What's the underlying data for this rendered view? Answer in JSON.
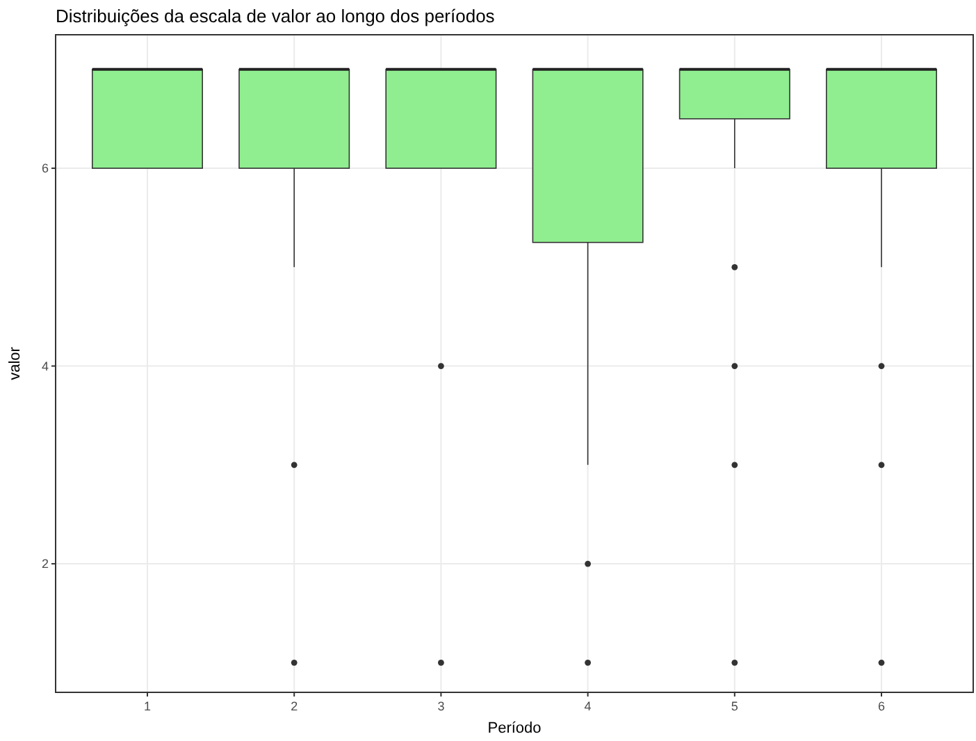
{
  "chart_data": {
    "type": "box",
    "title": "Distribuições da escala de valor ao longo dos períodos",
    "xlabel": "Período",
    "ylabel": "valor",
    "categories": [
      "1",
      "2",
      "3",
      "4",
      "5",
      "6"
    ],
    "color": "#90ee90",
    "grid": true,
    "ylim": [
      0.7,
      7.35
    ],
    "yticks": [
      2,
      4,
      6
    ],
    "boxes": [
      {
        "low": 6,
        "q1": 6,
        "median": 7,
        "q3": 7,
        "high": 7
      },
      {
        "low": 5,
        "q1": 6,
        "median": 7,
        "q3": 7,
        "high": 7,
        "outliers": [
          3,
          1
        ]
      },
      {
        "low": 6,
        "q1": 6,
        "median": 7,
        "q3": 7,
        "high": 7,
        "outliers": [
          4,
          1
        ]
      },
      {
        "low": 3,
        "q1": 5.25,
        "median": 7,
        "q3": 7,
        "high": 7,
        "outliers": [
          2,
          1
        ]
      },
      {
        "low": 6,
        "q1": 6.5,
        "median": 7,
        "q3": 7,
        "high": 7,
        "outliers": [
          5,
          4,
          3,
          1
        ]
      },
      {
        "low": 5,
        "q1": 6,
        "median": 7,
        "q3": 7,
        "high": 7,
        "outliers": [
          4,
          3,
          1
        ]
      }
    ]
  }
}
